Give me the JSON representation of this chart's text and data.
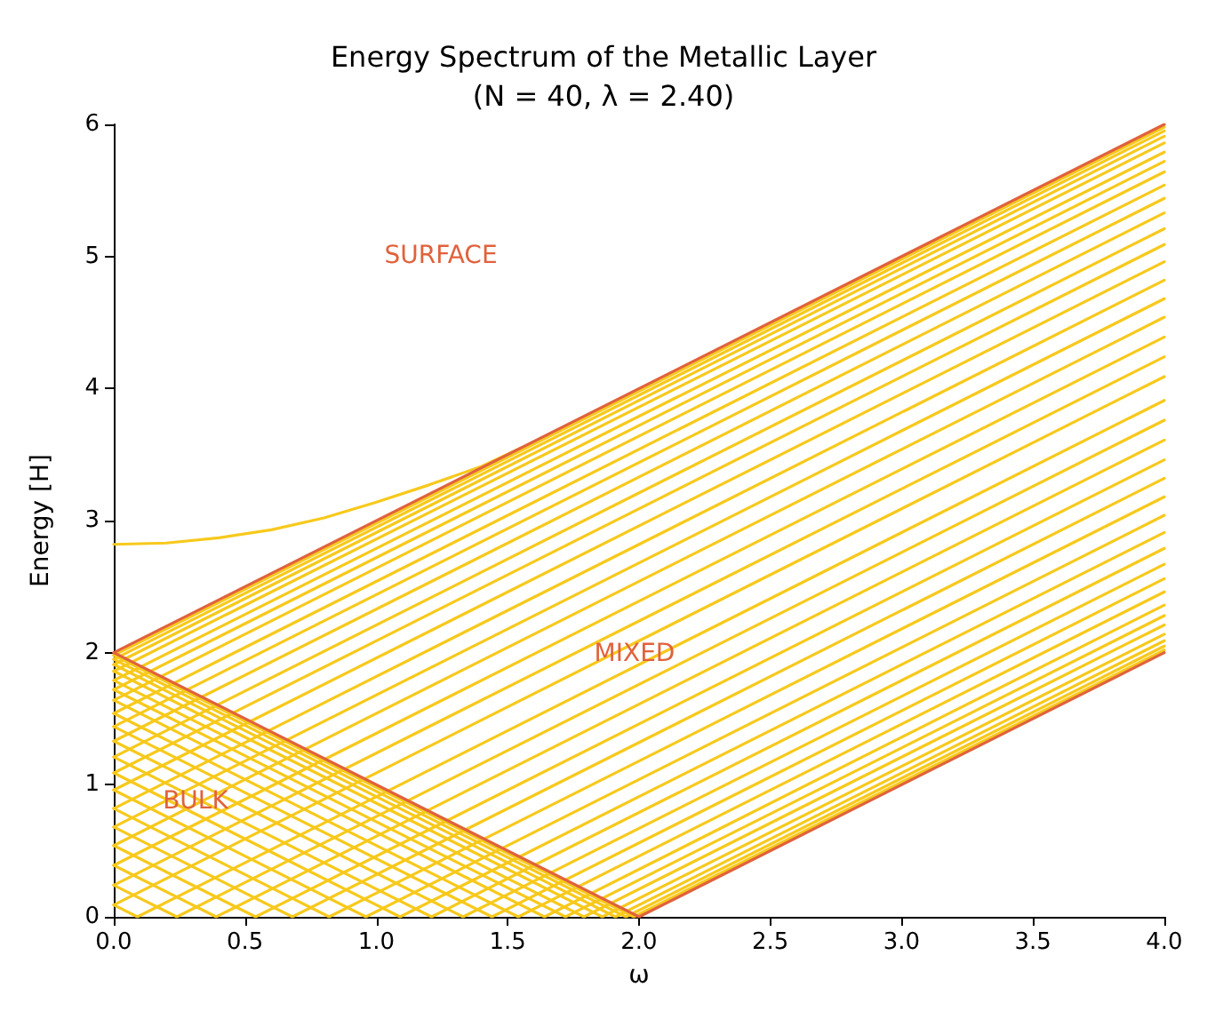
{
  "chart_data": {
    "type": "line",
    "title": "Energy Spectrum of the Metallic Layer\n(N = 40, λ = 2.40)",
    "xlabel": "ω",
    "ylabel": "Energy [H]",
    "xlim": [
      0,
      4
    ],
    "ylim": [
      0,
      6
    ],
    "xticks": [
      {
        "value": 0,
        "label": "0.0"
      },
      {
        "value": 0.5,
        "label": "0.5"
      },
      {
        "value": 1,
        "label": "1.0"
      },
      {
        "value": 1.5,
        "label": "1.5"
      },
      {
        "value": 2,
        "label": "2.0"
      },
      {
        "value": 2.5,
        "label": "2.5"
      },
      {
        "value": 3,
        "label": "3.0"
      },
      {
        "value": 3.5,
        "label": "3.5"
      },
      {
        "value": 4,
        "label": "4.0"
      }
    ],
    "yticks": [
      0,
      1,
      2,
      3,
      4,
      5,
      6
    ],
    "grid": false,
    "marker": "none",
    "line_style": "solid",
    "annotations": [
      "SURFACE",
      "MIXED",
      "BULK"
    ],
    "series": [
      {
        "color": "#f7c91c",
        "x": [
          0,
          4
        ],
        "values": [
          1.98,
          5.98
        ]
      },
      {
        "color": "#f7c91c",
        "x": [
          0,
          4
        ],
        "values": [
          1.95,
          5.95
        ]
      },
      {
        "color": "#f7c91c",
        "x": [
          0,
          4
        ],
        "values": [
          1.91,
          5.91
        ]
      },
      {
        "color": "#f7c91c",
        "x": [
          0,
          4
        ],
        "values": [
          1.86,
          5.86
        ]
      },
      {
        "color": "#f7c91c",
        "x": [
          0,
          4
        ],
        "values": [
          1.79,
          5.79
        ]
      },
      {
        "color": "#f7c91c",
        "x": [
          0,
          4
        ],
        "values": [
          1.72,
          5.72
        ]
      },
      {
        "color": "#f7c91c",
        "x": [
          0,
          4
        ],
        "values": [
          1.64,
          5.64
        ]
      },
      {
        "color": "#f7c91c",
        "x": [
          0,
          4
        ],
        "values": [
          1.54,
          5.54
        ]
      },
      {
        "color": "#f7c91c",
        "x": [
          0,
          4
        ],
        "values": [
          1.44,
          5.44
        ]
      },
      {
        "color": "#f7c91c",
        "x": [
          0,
          4
        ],
        "values": [
          1.33,
          5.33
        ]
      },
      {
        "color": "#f7c91c",
        "x": [
          0,
          4
        ],
        "values": [
          1.21,
          5.21
        ]
      },
      {
        "color": "#f7c91c",
        "x": [
          0,
          4
        ],
        "values": [
          1.09,
          5.09
        ]
      },
      {
        "color": "#f7c91c",
        "x": [
          0,
          4
        ],
        "values": [
          0.96,
          4.96
        ]
      },
      {
        "color": "#f7c91c",
        "x": [
          0,
          4
        ],
        "values": [
          0.82,
          4.82
        ]
      },
      {
        "color": "#f7c91c",
        "x": [
          0,
          4
        ],
        "values": [
          0.68,
          4.68
        ]
      },
      {
        "color": "#f7c91c",
        "x": [
          0,
          4
        ],
        "values": [
          0.54,
          4.54
        ]
      },
      {
        "color": "#f7c91c",
        "x": [
          0,
          4
        ],
        "values": [
          0.39,
          4.39
        ]
      },
      {
        "color": "#f7c91c",
        "x": [
          0,
          4
        ],
        "values": [
          0.24,
          4.24
        ]
      },
      {
        "color": "#f7c91c",
        "x": [
          0,
          4
        ],
        "values": [
          0.09,
          4.09
        ]
      },
      {
        "color": "#f7c91c",
        "x": [
          0,
          0.09,
          4
        ],
        "values": [
          0.09,
          0,
          3.91
        ]
      },
      {
        "color": "#f7c91c",
        "x": [
          0,
          0.24,
          4
        ],
        "values": [
          0.24,
          0,
          3.76
        ]
      },
      {
        "color": "#f7c91c",
        "x": [
          0,
          0.39,
          4
        ],
        "values": [
          0.39,
          0,
          3.61
        ]
      },
      {
        "color": "#f7c91c",
        "x": [
          0,
          0.54,
          4
        ],
        "values": [
          0.54,
          0,
          3.46
        ]
      },
      {
        "color": "#f7c91c",
        "x": [
          0,
          0.68,
          4
        ],
        "values": [
          0.68,
          0,
          3.32
        ]
      },
      {
        "color": "#f7c91c",
        "x": [
          0,
          0.82,
          4
        ],
        "values": [
          0.82,
          0,
          3.18
        ]
      },
      {
        "color": "#f7c91c",
        "x": [
          0,
          0.96,
          4
        ],
        "values": [
          0.96,
          0,
          3.04
        ]
      },
      {
        "color": "#f7c91c",
        "x": [
          0,
          1.09,
          4
        ],
        "values": [
          1.09,
          0,
          2.91
        ]
      },
      {
        "color": "#f7c91c",
        "x": [
          0,
          1.21,
          4
        ],
        "values": [
          1.21,
          0,
          2.79
        ]
      },
      {
        "color": "#f7c91c",
        "x": [
          0,
          1.33,
          4
        ],
        "values": [
          1.33,
          0,
          2.67
        ]
      },
      {
        "color": "#f7c91c",
        "x": [
          0,
          1.44,
          4
        ],
        "values": [
          1.44,
          0,
          2.56
        ]
      },
      {
        "color": "#f7c91c",
        "x": [
          0,
          1.54,
          4
        ],
        "values": [
          1.54,
          0,
          2.46
        ]
      },
      {
        "color": "#f7c91c",
        "x": [
          0,
          1.64,
          4
        ],
        "values": [
          1.64,
          0,
          2.36
        ]
      },
      {
        "color": "#f7c91c",
        "x": [
          0,
          1.72,
          4
        ],
        "values": [
          1.72,
          0,
          2.28
        ]
      },
      {
        "color": "#f7c91c",
        "x": [
          0,
          1.79,
          4
        ],
        "values": [
          1.79,
          0,
          2.21
        ]
      },
      {
        "color": "#f7c91c",
        "x": [
          0,
          1.86,
          4
        ],
        "values": [
          1.86,
          0,
          2.14
        ]
      },
      {
        "color": "#f7c91c",
        "x": [
          0,
          1.91,
          4
        ],
        "values": [
          1.91,
          0,
          2.09
        ]
      },
      {
        "color": "#f7c91c",
        "x": [
          0,
          1.95,
          4
        ],
        "values": [
          1.95,
          0,
          2.05
        ]
      },
      {
        "color": "#f7c91c",
        "x": [
          0,
          1.98,
          4
        ],
        "values": [
          1.98,
          0,
          2.02
        ]
      },
      {
        "color": "#f7c91c",
        "x": [
          0,
          0.2,
          0.4,
          0.6,
          0.8,
          1.0,
          1.2,
          1.4,
          1.55
        ],
        "values": [
          2.82,
          2.83,
          2.87,
          2.93,
          3.02,
          3.14,
          3.27,
          3.41,
          3.55
        ]
      },
      {
        "color": "#e0623c",
        "x": [
          0,
          4
        ],
        "values": [
          2,
          6
        ]
      },
      {
        "color": "#e0623c",
        "x": [
          0,
          2,
          4
        ],
        "values": [
          2,
          0,
          2
        ]
      }
    ]
  }
}
